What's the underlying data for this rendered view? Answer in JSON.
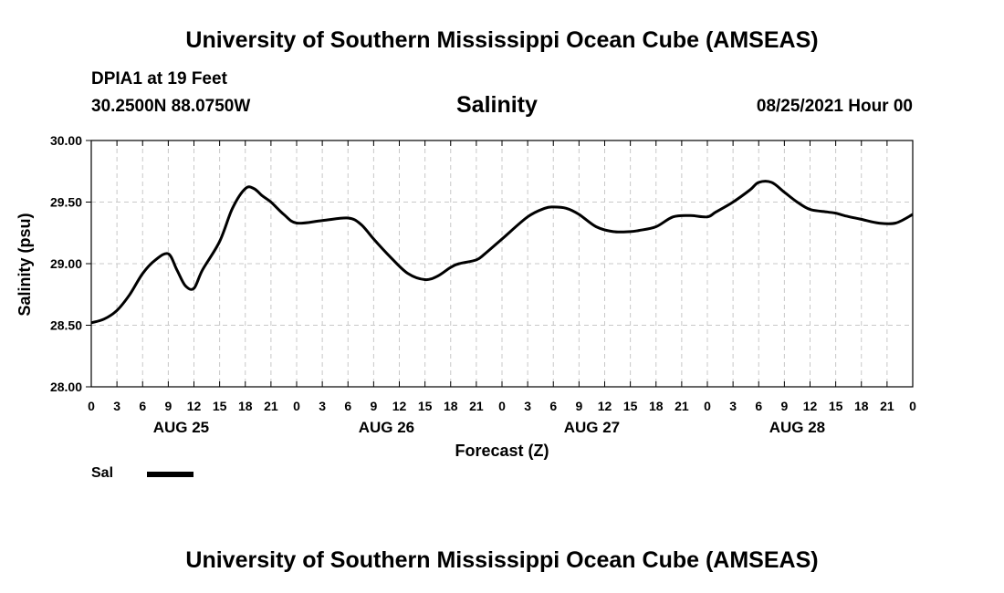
{
  "page": {
    "title_top": "University of Southern Mississippi Ocean Cube (AMSEAS)",
    "title_bottom": "University of Southern Mississippi Ocean Cube (AMSEAS)",
    "station": "DPIA1 at 19 Feet",
    "coords": "30.2500N  88.0750W",
    "parameter": "Salinity",
    "datetime": "08/25/2021 Hour 00"
  },
  "chart_data": {
    "type": "line",
    "title": "Salinity",
    "xlabel": "Forecast (Z)",
    "ylabel": "Salinity (psu)",
    "ylim": [
      28.0,
      30.0
    ],
    "xlim": [
      0,
      96
    ],
    "y_ticks": [
      "28.00",
      "28.50",
      "29.00",
      "29.50",
      "30.00"
    ],
    "x_ticks": [
      "0",
      "3",
      "6",
      "9",
      "12",
      "15",
      "18",
      "21",
      "0",
      "3",
      "6",
      "9",
      "12",
      "15",
      "18",
      "21",
      "0",
      "3",
      "6",
      "9",
      "12",
      "15",
      "18",
      "21",
      "0",
      "3",
      "6",
      "9",
      "12",
      "15",
      "18",
      "21",
      "0"
    ],
    "day_labels": [
      "AUG 25",
      "AUG 26",
      "AUG 27",
      "AUG 28"
    ],
    "grid": true,
    "legend": [
      {
        "label": "Sal",
        "color": "#000000"
      }
    ],
    "series": [
      {
        "name": "Sal",
        "x": [
          0,
          1.5,
          3,
          4.5,
          6,
          7.5,
          9,
          10,
          11,
          12,
          13,
          15,
          16.5,
          18,
          19,
          20,
          21,
          22.5,
          24,
          27,
          30,
          31.5,
          33,
          35,
          37,
          39,
          40.5,
          42,
          43,
          45,
          46,
          48,
          51,
          53,
          54,
          55.5,
          57,
          59,
          61,
          63,
          64,
          66,
          68,
          70,
          72,
          73,
          75,
          77,
          78,
          79.5,
          81,
          82.5,
          84,
          86,
          87,
          88,
          90,
          92,
          94,
          96
        ],
        "values": [
          28.52,
          28.55,
          28.62,
          28.75,
          28.92,
          29.03,
          29.08,
          28.95,
          28.82,
          28.8,
          28.95,
          29.18,
          29.45,
          29.61,
          29.61,
          29.55,
          29.5,
          29.4,
          29.33,
          29.35,
          29.37,
          29.32,
          29.2,
          29.05,
          28.92,
          28.87,
          28.9,
          28.97,
          29.0,
          29.03,
          29.08,
          29.2,
          29.38,
          29.45,
          29.46,
          29.45,
          29.4,
          29.3,
          29.26,
          29.26,
          29.27,
          29.3,
          29.38,
          29.39,
          29.38,
          29.42,
          29.5,
          29.6,
          29.66,
          29.66,
          29.58,
          29.5,
          29.44,
          29.42,
          29.41,
          29.39,
          29.36,
          29.33,
          29.33,
          29.4
        ]
      }
    ]
  }
}
